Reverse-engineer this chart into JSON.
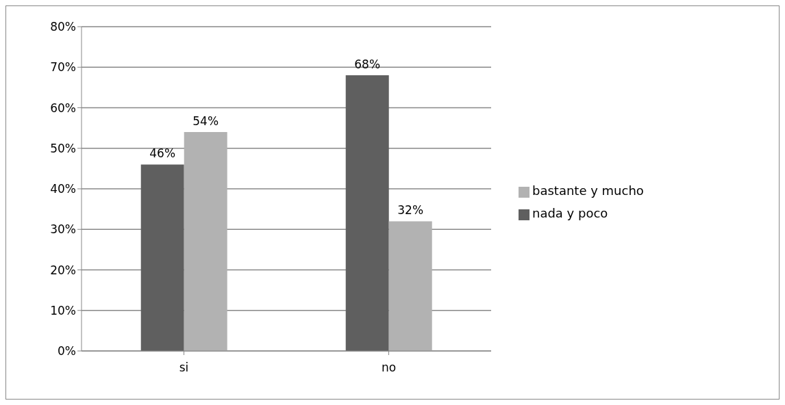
{
  "chart_data": {
    "type": "bar",
    "categories": [
      "si",
      "no"
    ],
    "series": [
      {
        "name": "nada y poco",
        "color": "#5f5f5f",
        "values": [
          46,
          68
        ],
        "value_labels": [
          "46%",
          "68%"
        ]
      },
      {
        "name": "bastante y mucho",
        "color": "#b2b2b2",
        "values": [
          54,
          32
        ],
        "value_labels": [
          "54%",
          "32%"
        ]
      }
    ],
    "ylim": [
      0,
      80
    ],
    "yticks": [
      {
        "value": 0,
        "label": "0%"
      },
      {
        "value": 10,
        "label": "10%"
      },
      {
        "value": 20,
        "label": "20%"
      },
      {
        "value": 30,
        "label": "30%"
      },
      {
        "value": 40,
        "label": "40%"
      },
      {
        "value": 50,
        "label": "50%"
      },
      {
        "value": 60,
        "label": "60%"
      },
      {
        "value": 70,
        "label": "70%"
      },
      {
        "value": 80,
        "label": "80%"
      }
    ],
    "grid": "y",
    "legend": "right"
  }
}
